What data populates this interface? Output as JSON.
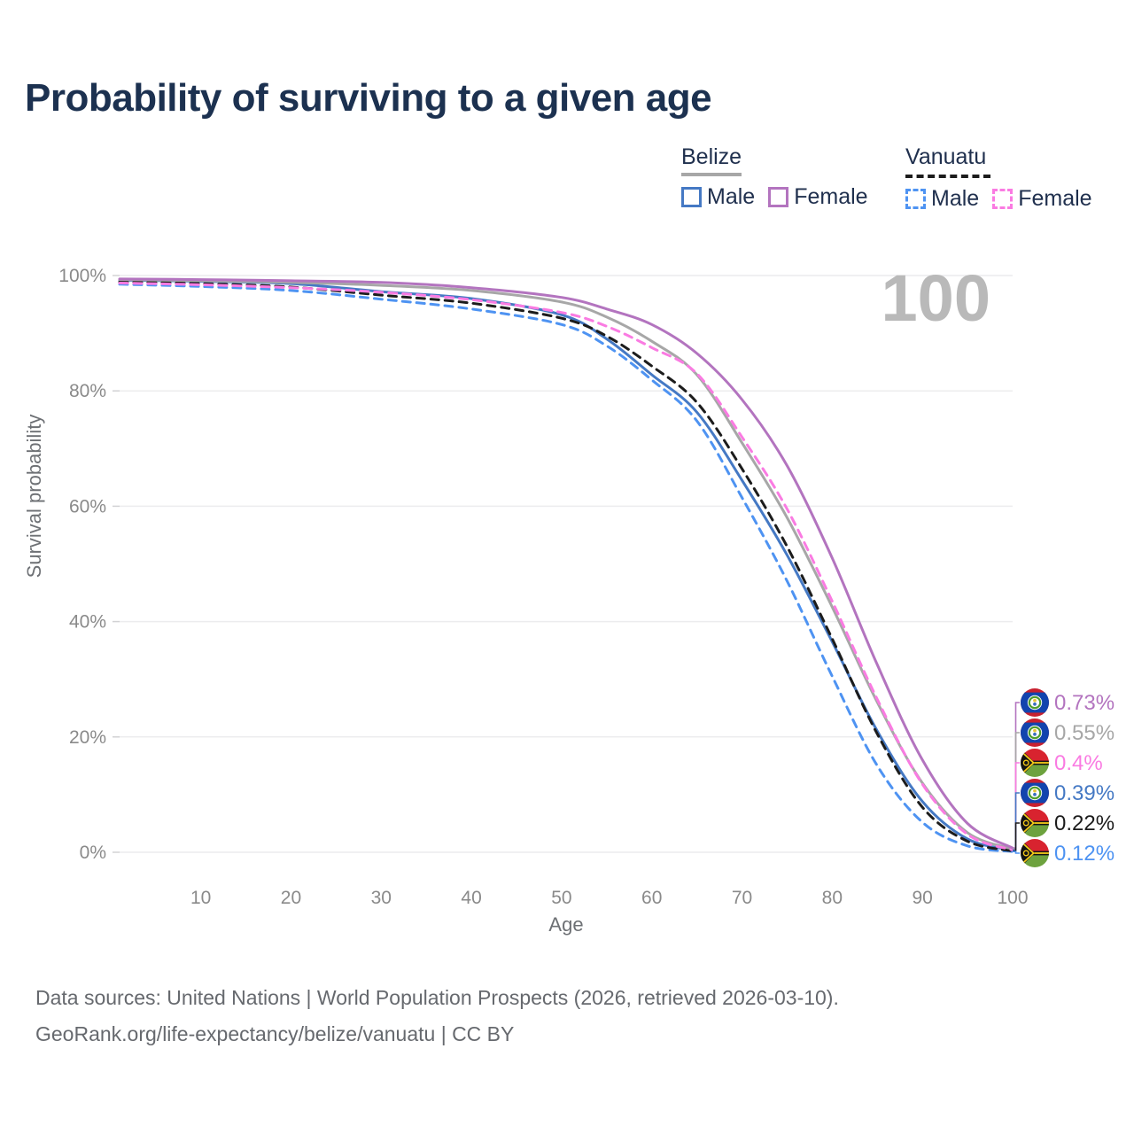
{
  "title": "Probability of surviving to a given age",
  "watermark": "100",
  "legend": {
    "groups": [
      {
        "id": "belize",
        "label": "Belize",
        "line_style": "solid",
        "line_color": "#a7a7a7",
        "items": [
          {
            "id": "belize-male",
            "label": "Male",
            "color": "#4579c4",
            "dashed": false
          },
          {
            "id": "belize-female",
            "label": "Female",
            "color": "#b374bf",
            "dashed": false
          }
        ]
      },
      {
        "id": "vanuatu",
        "label": "Vanuatu",
        "line_style": "dashed",
        "line_color": "#1c1c1c",
        "items": [
          {
            "id": "vanuatu-male",
            "label": "Male",
            "color": "#4e93f2",
            "dashed": true
          },
          {
            "id": "vanuatu-female",
            "label": "Female",
            "color": "#fa7be2",
            "dashed": true
          }
        ]
      }
    ]
  },
  "chart_data": {
    "type": "line",
    "title": "Probability of surviving to a given age",
    "xlabel": "Age",
    "ylabel": "Survival probability",
    "xlim": [
      1,
      100
    ],
    "ylim": [
      0,
      100
    ],
    "grid": true,
    "legend_position": "top-right",
    "x_ticks": [
      10,
      20,
      30,
      40,
      50,
      60,
      70,
      80,
      90,
      100
    ],
    "y_ticks": [
      {
        "value": 0,
        "label": "0%"
      },
      {
        "value": 20,
        "label": "20%"
      },
      {
        "value": 40,
        "label": "40%"
      },
      {
        "value": 60,
        "label": "60%"
      },
      {
        "value": 80,
        "label": "80%"
      },
      {
        "value": 100,
        "label": "100%"
      }
    ],
    "x": [
      1,
      10,
      20,
      30,
      40,
      50,
      55,
      60,
      65,
      70,
      75,
      80,
      85,
      90,
      95,
      100
    ],
    "series": [
      {
        "id": "belize-female",
        "name": "Belize Female",
        "color": "#b374bf",
        "dashed": false,
        "flag": "belize",
        "end_label": "0.73%",
        "values": [
          99.4,
          99.3,
          99.1,
          98.8,
          97.9,
          96.2,
          94.2,
          91.5,
          86.5,
          78.5,
          67.0,
          51.0,
          32.5,
          16.0,
          5.0,
          0.73
        ]
      },
      {
        "id": "belize-total",
        "name": "Belize",
        "color": "#a7a7a7",
        "dashed": false,
        "flag": "belize",
        "end_label": "0.55%",
        "values": [
          99.3,
          99.1,
          98.8,
          98.3,
          97.4,
          95.4,
          92.8,
          88.6,
          82.8,
          71.0,
          58.0,
          42.5,
          26.0,
          12.0,
          3.4,
          0.55
        ]
      },
      {
        "id": "vanuatu-female",
        "name": "Vanuatu Female",
        "color": "#fa7be2",
        "dashed": true,
        "flag": "vanuatu",
        "end_label": "0.4%",
        "values": [
          98.7,
          98.4,
          97.9,
          97.1,
          95.8,
          93.6,
          91.2,
          87.5,
          83.0,
          72.0,
          59.5,
          43.5,
          26.5,
          11.8,
          3.1,
          0.4
        ]
      },
      {
        "id": "belize-male",
        "name": "Belize Male",
        "color": "#4579c4",
        "dashed": false,
        "flag": "belize",
        "end_label": "0.39%",
        "values": [
          99.2,
          99.0,
          98.6,
          97.2,
          96.0,
          93.2,
          89.0,
          82.8,
          76.3,
          64.5,
          51.5,
          36.5,
          21.0,
          8.8,
          2.3,
          0.39
        ]
      },
      {
        "id": "vanuatu-total",
        "name": "Vanuatu",
        "color": "#1c1c1c",
        "dashed": true,
        "flag": "vanuatu",
        "end_label": "0.22%",
        "values": [
          98.9,
          98.6,
          98.0,
          96.6,
          95.2,
          92.6,
          89.5,
          84.3,
          78.0,
          66.5,
          53.0,
          37.0,
          20.5,
          7.8,
          1.9,
          0.22
        ]
      },
      {
        "id": "vanuatu-male",
        "name": "Vanuatu Male",
        "color": "#4e93f2",
        "dashed": true,
        "flag": "vanuatu",
        "end_label": "0.12%",
        "values": [
          98.5,
          98.1,
          97.4,
          95.9,
          94.2,
          91.5,
          87.8,
          81.9,
          74.8,
          61.5,
          47.0,
          30.5,
          15.0,
          5.2,
          1.1,
          0.12
        ]
      }
    ]
  },
  "footer": {
    "line1": "Data sources: United Nations | World Population Prospects (2026, retrieved 2026-03-10).",
    "line2": "GeoRank.org/life-expectancy/belize/vanuatu | CC BY"
  }
}
